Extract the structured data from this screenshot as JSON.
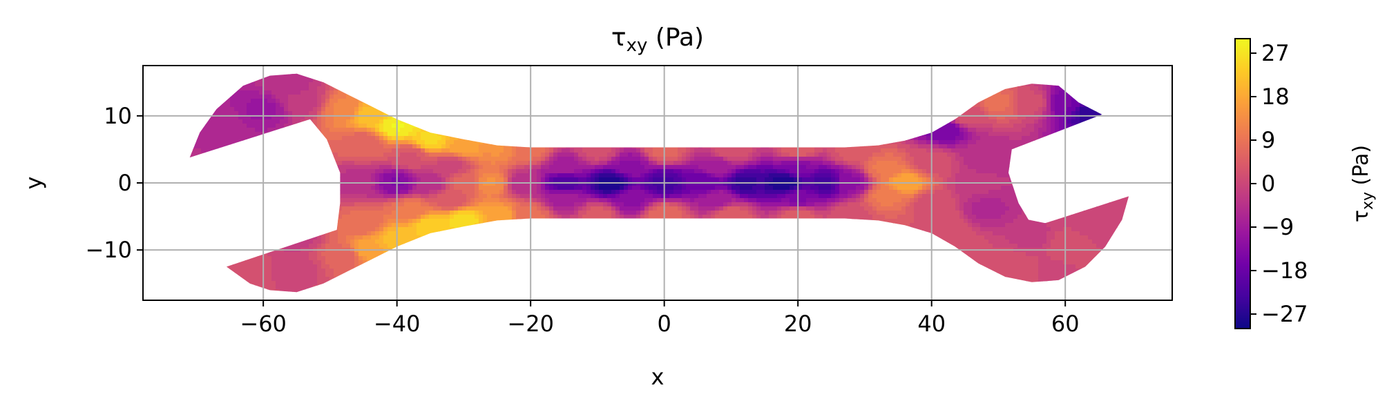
{
  "chart_data": {
    "type": "heatmap",
    "title": "τ",
    "title_sub": "xy",
    "title_suffix": " (Pa)",
    "xlabel": "x",
    "ylabel": "y",
    "xlim": [
      -78,
      76
    ],
    "ylim": [
      -17.5,
      17.5
    ],
    "xticks": [
      -60,
      -40,
      -20,
      0,
      20,
      40,
      60
    ],
    "xtick_labels": [
      "−60",
      "−40",
      "−20",
      "0",
      "20",
      "40",
      "60"
    ],
    "yticks": [
      -10,
      0,
      10
    ],
    "ytick_labels": [
      "−10",
      "0",
      "10"
    ],
    "grid": true,
    "colorbar": {
      "label_main": "τ",
      "label_sub": "xy",
      "label_suffix": " (Pa)",
      "range": [
        -30,
        30
      ],
      "ticks": [
        27,
        18,
        9,
        0,
        -9,
        -18,
        -27
      ],
      "tick_labels": [
        "27",
        "18",
        "9",
        "0",
        "−9",
        "−18",
        "−27"
      ],
      "colormap": "plasma"
    },
    "colormap_stops": [
      "#0d0887",
      "#46039f",
      "#7201a8",
      "#9c179e",
      "#bd3786",
      "#d8576b",
      "#ed7953",
      "#fb9f3a",
      "#fdca26",
      "#f0f921"
    ],
    "outline": [
      [
        -71,
        3.8
      ],
      [
        -69.5,
        7.5
      ],
      [
        -67,
        11
      ],
      [
        -63,
        14.5
      ],
      [
        -59,
        16
      ],
      [
        -55,
        16.3
      ],
      [
        -51,
        15
      ],
      [
        -47,
        13
      ],
      [
        -44,
        11.5
      ],
      [
        -40,
        9.5
      ],
      [
        -35,
        7.5
      ],
      [
        -30,
        6.5
      ],
      [
        -25,
        5.6
      ],
      [
        -20,
        5.3
      ],
      [
        -10,
        5.3
      ],
      [
        0,
        5.3
      ],
      [
        10,
        5.3
      ],
      [
        20,
        5.3
      ],
      [
        27,
        5.3
      ],
      [
        32,
        5.6
      ],
      [
        36,
        6.3
      ],
      [
        40,
        7.5
      ],
      [
        43.5,
        9.5
      ],
      [
        47,
        12
      ],
      [
        51,
        14
      ],
      [
        55,
        14.8
      ],
      [
        59,
        14.5
      ],
      [
        62,
        12
      ],
      [
        65.5,
        10.2
      ],
      [
        52,
        5
      ],
      [
        51.5,
        1.5
      ],
      [
        53,
        -3
      ],
      [
        54.5,
        -5.5
      ],
      [
        57,
        -6
      ],
      [
        69.5,
        -2
      ],
      [
        68.5,
        -5.5
      ],
      [
        66,
        -9.5
      ],
      [
        63,
        -12.5
      ],
      [
        59,
        -14.5
      ],
      [
        55,
        -14.8
      ],
      [
        51,
        -14
      ],
      [
        47,
        -12
      ],
      [
        43.5,
        -9.5
      ],
      [
        40,
        -7.5
      ],
      [
        36,
        -6.3
      ],
      [
        32,
        -5.6
      ],
      [
        27,
        -5.3
      ],
      [
        20,
        -5.3
      ],
      [
        10,
        -5.3
      ],
      [
        0,
        -5.3
      ],
      [
        -10,
        -5.3
      ],
      [
        -20,
        -5.3
      ],
      [
        -25,
        -5.6
      ],
      [
        -30,
        -6.5
      ],
      [
        -35,
        -7.5
      ],
      [
        -40,
        -9.5
      ],
      [
        -44,
        -11.5
      ],
      [
        -47,
        -13
      ],
      [
        -51,
        -15
      ],
      [
        -55,
        -16.3
      ],
      [
        -59,
        -16
      ],
      [
        -62,
        -15
      ],
      [
        -65.5,
        -12.5
      ],
      [
        -49,
        -7
      ],
      [
        -48.5,
        -3
      ],
      [
        -48.5,
        1.5
      ],
      [
        -50.5,
        6.5
      ],
      [
        -53,
        9.5
      ]
    ],
    "field_samples": [
      [
        -60,
        11,
        -10
      ],
      [
        -67,
        9,
        -6
      ],
      [
        -54,
        12,
        -2
      ],
      [
        -56,
        14.5,
        -4
      ],
      [
        -48,
        11,
        12
      ],
      [
        -44,
        10,
        22
      ],
      [
        -40,
        8.5,
        29
      ],
      [
        -35,
        6.5,
        25
      ],
      [
        -30,
        5.6,
        18
      ],
      [
        -25,
        5,
        14
      ],
      [
        -20,
        4.8,
        8
      ],
      [
        -10,
        4.8,
        2
      ],
      [
        0,
        4.8,
        6
      ],
      [
        10,
        4.8,
        3
      ],
      [
        20,
        4.8,
        5
      ],
      [
        28,
        4.8,
        4
      ],
      [
        -45,
        6,
        6
      ],
      [
        -38,
        4,
        3
      ],
      [
        -32,
        2.5,
        0
      ],
      [
        -30,
        0,
        6
      ],
      [
        -26,
        0,
        14
      ],
      [
        -21,
        0,
        -5
      ],
      [
        -15,
        0,
        -22
      ],
      [
        -8,
        0,
        -28
      ],
      [
        0,
        0,
        -23
      ],
      [
        6,
        0,
        -18
      ],
      [
        12,
        0,
        -25
      ],
      [
        18,
        0,
        -28
      ],
      [
        24,
        0,
        -23
      ],
      [
        28,
        0,
        -12
      ],
      [
        -46,
        0,
        -4
      ],
      [
        -40,
        0,
        -14
      ],
      [
        -35,
        0,
        -5
      ],
      [
        -15,
        2.5,
        -8
      ],
      [
        -5,
        2.5,
        -12
      ],
      [
        8,
        2.5,
        -8
      ],
      [
        20,
        2.5,
        -14
      ],
      [
        -15,
        -2.5,
        -8
      ],
      [
        -5,
        -2.5,
        -12
      ],
      [
        8,
        -2.5,
        -8
      ],
      [
        20,
        -2.5,
        -14
      ],
      [
        -48,
        -11,
        6
      ],
      [
        -44,
        -10,
        18
      ],
      [
        -40,
        -8.5,
        22
      ],
      [
        -35,
        -6.5,
        24
      ],
      [
        -30,
        -5.6,
        26
      ],
      [
        -25,
        -5,
        18
      ],
      [
        -20,
        -4.8,
        8
      ],
      [
        -10,
        -4.8,
        4
      ],
      [
        0,
        -4.8,
        7
      ],
      [
        10,
        -4.8,
        5
      ],
      [
        20,
        -4.8,
        5
      ],
      [
        28,
        -4.8,
        3
      ],
      [
        -55,
        -13,
        0
      ],
      [
        -62,
        -13,
        2
      ],
      [
        -55,
        -8,
        -2
      ],
      [
        -45,
        -6,
        8
      ],
      [
        -38,
        -4,
        10
      ],
      [
        -32,
        -2.5,
        4
      ],
      [
        36,
        0,
        18
      ],
      [
        33,
        2,
        10
      ],
      [
        33,
        -2,
        10
      ],
      [
        40,
        3,
        2
      ],
      [
        40,
        -3,
        2
      ],
      [
        42,
        8,
        -16
      ],
      [
        45,
        10,
        2
      ],
      [
        50,
        12,
        8
      ],
      [
        55,
        12,
        2
      ],
      [
        60,
        12,
        -16
      ],
      [
        64,
        10.5,
        -26
      ],
      [
        48,
        4,
        -5
      ],
      [
        48,
        -4,
        -6
      ],
      [
        47,
        0,
        -3
      ],
      [
        55,
        -8,
        -2
      ],
      [
        60,
        -9,
        2
      ],
      [
        65,
        -6,
        0
      ],
      [
        52,
        -12,
        2
      ],
      [
        44,
        -9,
        2
      ],
      [
        42,
        -6,
        3
      ],
      [
        58,
        -13,
        1
      ]
    ]
  }
}
